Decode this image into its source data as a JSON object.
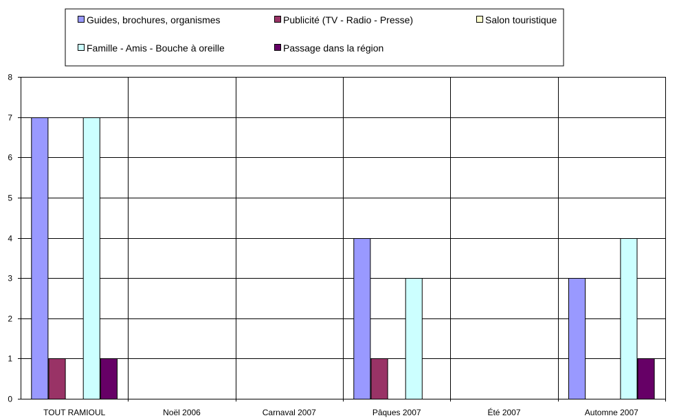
{
  "chart_data": {
    "type": "bar",
    "categories": [
      "TOUT RAMIOUL",
      "Noël 2006",
      "Carnaval 2007",
      "Pâques 2007",
      "Été 2007",
      "Automne 2007"
    ],
    "series": [
      {
        "name": "Guides, brochures, organismes",
        "color": "#9999ff",
        "values": [
          7,
          0,
          0,
          4,
          0,
          3
        ]
      },
      {
        "name": "Publicité (TV - Radio - Presse)",
        "color": "#993366",
        "values": [
          1,
          0,
          0,
          1,
          0,
          0
        ]
      },
      {
        "name": "Salon touristique",
        "color": "#ffffcc",
        "values": [
          0,
          0,
          0,
          0,
          0,
          0
        ]
      },
      {
        "name": "Famille - Amis - Bouche à oreille",
        "color": "#ccffff",
        "values": [
          7,
          0,
          0,
          3,
          0,
          4
        ]
      },
      {
        "name": "Passage dans la région",
        "color": "#660066",
        "values": [
          1,
          0,
          0,
          0,
          0,
          1
        ]
      }
    ],
    "ylim": [
      0,
      8
    ],
    "yticks": [
      0,
      1,
      2,
      3,
      4,
      5,
      6,
      7,
      8
    ],
    "grid": true,
    "legend_position": "top-center"
  }
}
